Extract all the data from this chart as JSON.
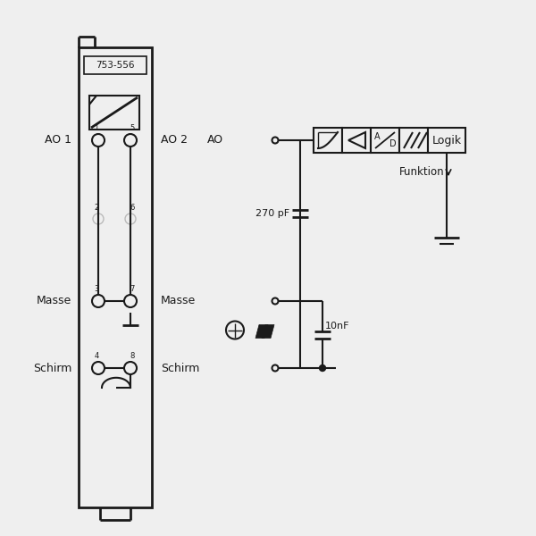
{
  "bg_color": "#efefef",
  "line_color": "#1a1a1a",
  "lw": 1.5,
  "module_label": "753-556",
  "labels_left": [
    "AO 1",
    "Masse",
    "Schirm"
  ],
  "labels_mid_ao2": "AO 2",
  "labels_mid_ao": "AO",
  "labels_mid_masse": "Masse",
  "labels_mid_schirm": "Schirm",
  "cap_270": "270 pF",
  "cap_10n": "10nF",
  "logik_label": "Logik",
  "funktion_label": "Funktion"
}
